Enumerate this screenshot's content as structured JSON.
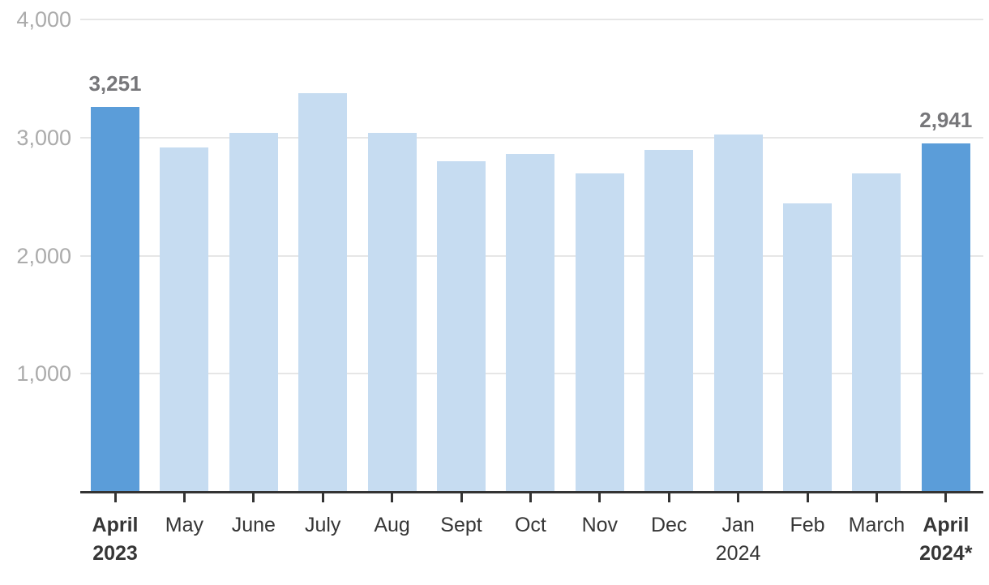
{
  "chart_data": {
    "type": "bar",
    "title": "",
    "xlabel": "",
    "ylabel": "",
    "categories": [
      {
        "lines": [
          "April",
          "2023"
        ],
        "bold": true
      },
      {
        "lines": [
          "May"
        ],
        "bold": false
      },
      {
        "lines": [
          "June"
        ],
        "bold": false
      },
      {
        "lines": [
          "July"
        ],
        "bold": false
      },
      {
        "lines": [
          "Aug"
        ],
        "bold": false
      },
      {
        "lines": [
          "Sept"
        ],
        "bold": false
      },
      {
        "lines": [
          "Oct"
        ],
        "bold": false
      },
      {
        "lines": [
          "Nov"
        ],
        "bold": false
      },
      {
        "lines": [
          "Dec"
        ],
        "bold": false
      },
      {
        "lines": [
          "Jan",
          "2024"
        ],
        "bold": false
      },
      {
        "lines": [
          "Feb"
        ],
        "bold": false
      },
      {
        "lines": [
          "March"
        ],
        "bold": false
      },
      {
        "lines": [
          "April",
          "2024*"
        ],
        "bold": true
      }
    ],
    "values": [
      3251,
      2910,
      3035,
      3370,
      3030,
      2790,
      2855,
      2690,
      2890,
      3020,
      2435,
      2690,
      2941
    ],
    "highlighted_indices": [
      0,
      12
    ],
    "bar_value_labels": [
      {
        "index": 0,
        "text": "3,251"
      },
      {
        "index": 12,
        "text": "2,941"
      }
    ],
    "y_ticks": [
      {
        "label": "4,000",
        "value": 4000
      },
      {
        "label": "3,000",
        "value": 3000
      },
      {
        "label": "2,000",
        "value": 2000
      },
      {
        "label": "1,000",
        "value": 1000
      }
    ],
    "ylim": [
      0,
      4000
    ],
    "grid": "horizontal-only",
    "legend": "none",
    "colors": {
      "bar_highlight": "#5B9DD9",
      "bar_default": "#C6DCF1",
      "gridline": "#E6E6E6",
      "axis_line": "#333333",
      "tick_mark": "#333333",
      "y_tick_label": "#ABABAB",
      "x_tick_label": "#363636",
      "data_label": "#77777A"
    }
  }
}
